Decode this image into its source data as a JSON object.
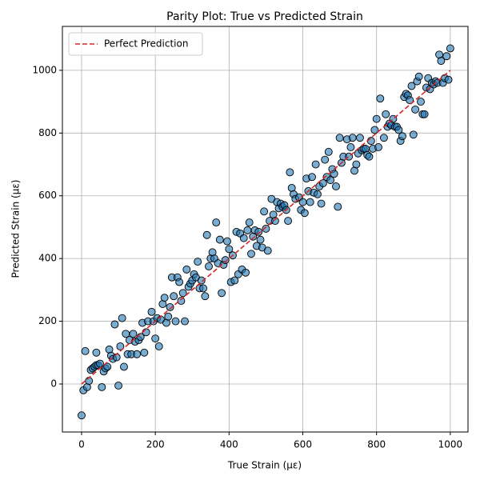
{
  "chart_data": {
    "type": "scatter",
    "title": "Parity Plot: True vs Predicted Strain",
    "x_label": "True Strain (με)",
    "y_label": "Predicted Strain (με)",
    "color": "#1f77b4",
    "grid": true,
    "legend": "upper left",
    "xlim": [
      -52,
      1048
    ],
    "ylim": [
      -153,
      1140
    ],
    "xticks": [
      0,
      200,
      400,
      600,
      800,
      1000
    ],
    "yticks": [
      0,
      200,
      400,
      600,
      800,
      1000
    ],
    "reference_line": {
      "name": "Perfect Prediction",
      "color": "#d62728",
      "x": [
        0,
        1000
      ],
      "y": [
        0,
        1000
      ]
    },
    "x": [
      0,
      5,
      10,
      15,
      20,
      25,
      30,
      35,
      40,
      40,
      45,
      50,
      55,
      60,
      65,
      70,
      75,
      80,
      85,
      90,
      95,
      100,
      105,
      110,
      115,
      120,
      125,
      130,
      135,
      140,
      145,
      150,
      155,
      160,
      165,
      170,
      175,
      180,
      190,
      195,
      200,
      205,
      210,
      215,
      220,
      225,
      230,
      235,
      240,
      245,
      250,
      255,
      260,
      265,
      270,
      275,
      280,
      285,
      290,
      295,
      300,
      305,
      310,
      315,
      320,
      325,
      330,
      335,
      340,
      345,
      350,
      355,
      360,
      365,
      370,
      375,
      380,
      385,
      390,
      395,
      400,
      405,
      410,
      415,
      420,
      425,
      430,
      435,
      440,
      445,
      450,
      455,
      460,
      465,
      470,
      475,
      480,
      485,
      490,
      495,
      500,
      505,
      510,
      515,
      520,
      525,
      530,
      535,
      540,
      545,
      550,
      555,
      560,
      565,
      570,
      575,
      580,
      590,
      595,
      600,
      605,
      610,
      615,
      620,
      625,
      630,
      635,
      640,
      645,
      650,
      655,
      660,
      665,
      670,
      675,
      680,
      685,
      690,
      695,
      700,
      705,
      710,
      720,
      725,
      730,
      735,
      740,
      745,
      750,
      755,
      760,
      765,
      770,
      775,
      780,
      785,
      790,
      795,
      800,
      805,
      810,
      820,
      825,
      830,
      835,
      840,
      845,
      850,
      855,
      860,
      865,
      870,
      875,
      880,
      885,
      890,
      895,
      900,
      905,
      910,
      915,
      920,
      925,
      930,
      935,
      940,
      945,
      950,
      955,
      960,
      965,
      970,
      975,
      980,
      985,
      990,
      995,
      1000
    ],
    "values": [
      -100,
      -20,
      105,
      -10,
      10,
      45,
      50,
      55,
      100,
      60,
      60,
      65,
      -10,
      40,
      50,
      55,
      110,
      90,
      80,
      190,
      85,
      -5,
      120,
      210,
      55,
      160,
      95,
      140,
      95,
      160,
      135,
      95,
      140,
      150,
      195,
      100,
      165,
      200,
      230,
      200,
      145,
      210,
      120,
      205,
      255,
      275,
      195,
      215,
      245,
      340,
      280,
      200,
      340,
      325,
      265,
      290,
      200,
      365,
      310,
      320,
      330,
      350,
      340,
      390,
      305,
      330,
      305,
      280,
      475,
      375,
      400,
      420,
      400,
      515,
      385,
      460,
      290,
      380,
      395,
      455,
      430,
      325,
      410,
      330,
      485,
      350,
      480,
      365,
      465,
      355,
      490,
      515,
      415,
      470,
      490,
      440,
      485,
      460,
      435,
      550,
      495,
      425,
      520,
      590,
      540,
      520,
      580,
      560,
      575,
      565,
      570,
      555,
      520,
      675,
      625,
      605,
      590,
      595,
      555,
      580,
      545,
      655,
      615,
      580,
      660,
      610,
      700,
      605,
      630,
      575,
      640,
      715,
      660,
      740,
      650,
      685,
      670,
      630,
      565,
      785,
      705,
      725,
      780,
      725,
      755,
      785,
      680,
      700,
      735,
      785,
      745,
      750,
      750,
      730,
      725,
      775,
      750,
      810,
      845,
      755,
      910,
      785,
      860,
      820,
      830,
      825,
      845,
      820,
      820,
      810,
      775,
      790,
      915,
      925,
      920,
      905,
      950,
      795,
      875,
      965,
      980,
      900,
      860,
      860,
      945,
      975,
      940,
      960,
      955,
      965,
      960,
      1050,
      1030,
      960,
      975,
      1045,
      970,
      1070
    ]
  }
}
